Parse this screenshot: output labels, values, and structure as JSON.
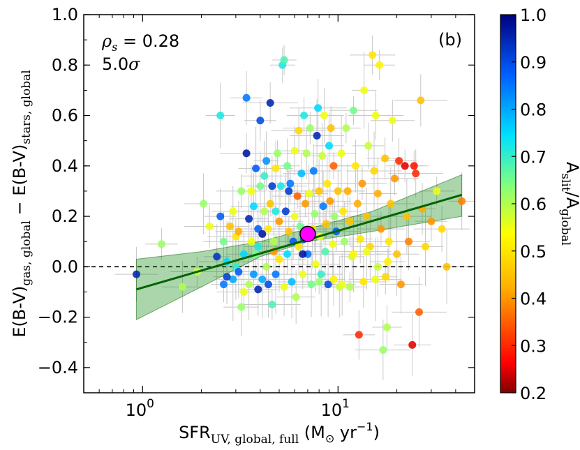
{
  "chart_data": {
    "type": "scatter",
    "panel_label": "(b)",
    "stat_rho": "ρ",
    "stat_rho_sub": "s",
    "stat_rho_value": " = 0.28",
    "stat_sigma_value": "5.0",
    "stat_sigma_symbol": "σ",
    "xscale": "log",
    "xlim": [
      0.5,
      50
    ],
    "ylim": [
      -0.5,
      1.0
    ],
    "x_ticks": [
      {
        "value": 1,
        "base": "10",
        "exp": "0"
      },
      {
        "value": 10,
        "base": "10",
        "exp": "1"
      }
    ],
    "y_ticks": [
      "−0.4",
      "−0.2",
      "0.0",
      "0.2",
      "0.4",
      "0.6",
      "0.8",
      "1.0"
    ],
    "y_tick_values": [
      -0.4,
      -0.2,
      0.0,
      0.2,
      0.4,
      0.6,
      0.8,
      1.0
    ],
    "xlabel": {
      "main": "SFR",
      "sub": "UV, global, full",
      "unit_open": " (M",
      "unit_sun": "⊙",
      "unit_yr": " yr",
      "unit_exp": "−1",
      "unit_close": ")"
    },
    "ylabel": {
      "a": "E(B-V)",
      "a_sub": "gas, global",
      "minus": " − ",
      "b": "E(B-V)",
      "b_sub": "stars, global"
    },
    "colorbar": {
      "label_a": "A",
      "label_a_sub": "slit",
      "slash": "/",
      "label_b": "A",
      "label_b_sub": "global",
      "range": [
        0.2,
        1.0
      ],
      "ticks": [
        "0.2",
        "0.3",
        "0.4",
        "0.5",
        "0.6",
        "0.7",
        "0.8",
        "0.9",
        "1.0"
      ],
      "tick_values": [
        0.2,
        0.3,
        0.4,
        0.5,
        0.6,
        0.7,
        0.8,
        0.9,
        1.0
      ]
    },
    "zero_line": 0.0,
    "fit_line": {
      "x": [
        0.93,
        43
      ],
      "y": [
        -0.09,
        0.285
      ]
    },
    "fit_band": {
      "x": [
        0.93,
        2,
        4,
        7,
        15,
        43
      ],
      "lower": [
        -0.21,
        -0.08,
        0.04,
        0.1,
        0.14,
        0.2
      ],
      "upper": [
        0.03,
        0.06,
        0.1,
        0.15,
        0.22,
        0.365
      ]
    },
    "highlight_point": {
      "x": 7.0,
      "y": 0.13,
      "color": "#ff00ff"
    },
    "points": [
      [
        0.93,
        -0.03,
        0.95
      ],
      [
        1.25,
        0.09,
        0.62
      ],
      [
        1.6,
        -0.08,
        0.6
      ],
      [
        1.9,
        -0.02,
        0.58
      ],
      [
        2.05,
        0.25,
        0.62
      ],
      [
        2.2,
        0.16,
        0.55
      ],
      [
        2.4,
        0.04,
        0.93
      ],
      [
        2.5,
        0.2,
        0.88
      ],
      [
        2.5,
        0.6,
        0.72
      ],
      [
        2.6,
        0.1,
        0.65
      ],
      [
        2.6,
        -0.07,
        0.85
      ],
      [
        2.7,
        0.02,
        0.75
      ],
      [
        2.8,
        0.16,
        0.45
      ],
      [
        2.9,
        -0.05,
        0.8
      ],
      [
        2.9,
        0.22,
        0.55
      ],
      [
        3.0,
        0.0,
        0.7
      ],
      [
        3.0,
        0.12,
        0.5
      ],
      [
        3.1,
        -0.02,
        0.88
      ],
      [
        3.2,
        -0.16,
        0.62
      ],
      [
        3.2,
        0.3,
        0.62
      ],
      [
        3.3,
        0.05,
        0.75
      ],
      [
        3.3,
        -0.1,
        0.55
      ],
      [
        3.4,
        0.45,
        0.97
      ],
      [
        3.4,
        0.67,
        0.85
      ],
      [
        3.5,
        0.19,
        0.95
      ],
      [
        3.5,
        -0.07,
        0.6
      ],
      [
        3.6,
        0.1,
        0.55
      ],
      [
        3.6,
        0.3,
        0.55
      ],
      [
        3.7,
        -0.03,
        0.82
      ],
      [
        3.7,
        0.24,
        0.75
      ],
      [
        3.8,
        0.39,
        0.88
      ],
      [
        3.8,
        0.05,
        0.65
      ],
      [
        3.9,
        0.15,
        0.88
      ],
      [
        3.9,
        -0.09,
        0.95
      ],
      [
        4.0,
        0.58,
        0.9
      ],
      [
        4.0,
        0.32,
        0.65
      ],
      [
        4.1,
        0.13,
        0.97
      ],
      [
        4.1,
        -0.05,
        0.8
      ],
      [
        4.2,
        0.22,
        0.6
      ],
      [
        4.2,
        0.36,
        0.7
      ],
      [
        4.3,
        0.42,
        0.82
      ],
      [
        4.3,
        0.0,
        0.6
      ],
      [
        4.4,
        0.15,
        0.5
      ],
      [
        4.4,
        -0.07,
        0.9
      ],
      [
        4.5,
        0.65,
        0.95
      ],
      [
        4.5,
        0.25,
        0.45
      ],
      [
        4.6,
        0.32,
        0.92
      ],
      [
        4.6,
        -0.15,
        0.68
      ],
      [
        4.7,
        0.1,
        0.6
      ],
      [
        4.7,
        0.06,
        0.4
      ],
      [
        4.8,
        0.22,
        0.72
      ],
      [
        4.8,
        -0.03,
        0.85
      ],
      [
        4.9,
        0.45,
        0.62
      ],
      [
        5.0,
        0.18,
        0.4
      ],
      [
        5.0,
        0.03,
        0.5
      ],
      [
        5.1,
        0.32,
        0.72
      ],
      [
        5.2,
        0.8,
        0.72
      ],
      [
        5.3,
        0.82,
        0.68
      ],
      [
        5.3,
        -0.08,
        0.55
      ],
      [
        5.4,
        0.22,
        0.92
      ],
      [
        5.5,
        0.4,
        0.65
      ],
      [
        5.5,
        0.05,
        0.75
      ],
      [
        5.6,
        0.14,
        0.45
      ],
      [
        5.7,
        0.33,
        0.85
      ],
      [
        5.8,
        -0.06,
        0.78
      ],
      [
        5.9,
        0.1,
        0.88
      ],
      [
        6.0,
        0.2,
        0.55
      ],
      [
        6.0,
        0.46,
        0.55
      ],
      [
        6.1,
        -0.12,
        0.6
      ],
      [
        6.2,
        0.28,
        0.35
      ],
      [
        6.3,
        0.08,
        0.5
      ],
      [
        6.3,
        0.54,
        0.48
      ],
      [
        6.4,
        0.16,
        0.65
      ],
      [
        6.5,
        0.37,
        0.78
      ],
      [
        6.6,
        -0.03,
        0.55
      ],
      [
        6.7,
        0.11,
        0.9
      ],
      [
        6.7,
        0.6,
        0.72
      ],
      [
        6.8,
        0.25,
        0.4
      ],
      [
        6.9,
        0.45,
        0.6
      ],
      [
        7.0,
        0.05,
        0.85
      ],
      [
        7.1,
        0.29,
        0.55
      ],
      [
        7.2,
        0.55,
        0.62
      ],
      [
        7.3,
        -0.07,
        0.65
      ],
      [
        7.4,
        0.15,
        0.5
      ],
      [
        7.5,
        0.38,
        0.85
      ],
      [
        7.6,
        0.21,
        0.62
      ],
      [
        7.7,
        0.01,
        0.55
      ],
      [
        7.8,
        0.52,
        0.95
      ],
      [
        7.9,
        0.63,
        0.75
      ],
      [
        8.0,
        0.3,
        0.45
      ],
      [
        8.1,
        0.12,
        0.55
      ],
      [
        8.2,
        -0.03,
        0.7
      ],
      [
        8.3,
        0.44,
        0.58
      ],
      [
        8.4,
        0.24,
        0.85
      ],
      [
        8.5,
        0.6,
        0.55
      ],
      [
        8.6,
        0.06,
        0.68
      ],
      [
        8.7,
        0.17,
        0.45
      ],
      [
        8.8,
        0.33,
        0.5
      ],
      [
        8.9,
        -0.07,
        0.9
      ],
      [
        9.0,
        0.48,
        0.75
      ],
      [
        9.1,
        0.26,
        0.4
      ],
      [
        9.2,
        0.55,
        0.45
      ],
      [
        9.4,
        0.09,
        0.55
      ],
      [
        9.5,
        0.4,
        0.35
      ],
      [
        9.6,
        0.2,
        0.62
      ],
      [
        9.8,
        0.14,
        0.88
      ],
      [
        10.0,
        0.3,
        0.45
      ],
      [
        10.2,
        -0.08,
        0.58
      ],
      [
        10.4,
        0.45,
        0.55
      ],
      [
        10.6,
        0.22,
        0.5
      ],
      [
        10.8,
        0.1,
        0.62
      ],
      [
        11.0,
        0.55,
        0.6
      ],
      [
        11.2,
        0.3,
        0.42
      ],
      [
        11.5,
        0.18,
        0.45
      ],
      [
        11.8,
        0.04,
        0.58
      ],
      [
        12.0,
        0.62,
        0.65
      ],
      [
        12.3,
        0.4,
        0.5
      ],
      [
        12.6,
        0.25,
        0.42
      ],
      [
        12.8,
        -0.27,
        0.3
      ],
      [
        13.0,
        0.11,
        0.5
      ],
      [
        13.3,
        0.33,
        0.4
      ],
      [
        13.6,
        0.7,
        0.55
      ],
      [
        14.0,
        0.2,
        0.45
      ],
      [
        14.3,
        0.48,
        0.58
      ],
      [
        14.6,
        0.08,
        0.48
      ],
      [
        15.0,
        0.84,
        0.5
      ],
      [
        15.3,
        0.38,
        0.48
      ],
      [
        15.6,
        0.6,
        0.55
      ],
      [
        16.0,
        0.29,
        0.42
      ],
      [
        16.3,
        0.8,
        0.52
      ],
      [
        16.6,
        0.15,
        0.4
      ],
      [
        17.0,
        -0.33,
        0.62
      ],
      [
        17.4,
        0.43,
        0.45
      ],
      [
        17.8,
        -0.24,
        0.6
      ],
      [
        18.2,
        0.1,
        0.5
      ],
      [
        18.6,
        0.25,
        0.45
      ],
      [
        19.0,
        0.58,
        0.55
      ],
      [
        19.5,
        0.35,
        0.4
      ],
      [
        20.0,
        0.05,
        0.45
      ],
      [
        20.5,
        0.42,
        0.3
      ],
      [
        21.0,
        -0.07,
        0.4
      ],
      [
        22.0,
        0.4,
        0.25
      ],
      [
        22.5,
        0.2,
        0.45
      ],
      [
        23.0,
        0.1,
        0.38
      ],
      [
        24.0,
        -0.31,
        0.25
      ],
      [
        24.5,
        0.4,
        0.28
      ],
      [
        25.0,
        0.37,
        0.3
      ],
      [
        26.0,
        -0.18,
        0.35
      ],
      [
        26.5,
        0.66,
        0.45
      ],
      [
        27.0,
        0.23,
        0.42
      ],
      [
        28.0,
        0.08,
        0.48
      ],
      [
        30.0,
        0.18,
        0.4
      ],
      [
        32.0,
        0.3,
        0.55
      ],
      [
        34.0,
        0.15,
        0.48
      ],
      [
        36.0,
        -0.0,
        0.45
      ],
      [
        43.0,
        0.26,
        0.38
      ],
      [
        3.9,
        0.08,
        0.72
      ],
      [
        4.8,
        0.39,
        0.5
      ],
      [
        5.6,
        0.3,
        0.92
      ],
      [
        6.6,
        0.05,
        0.97
      ],
      [
        3.1,
        0.14,
        0.42
      ],
      [
        2.7,
        -0.04,
        0.92
      ],
      [
        8.0,
        -0.06,
        0.62
      ],
      [
        9.5,
        -0.05,
        0.52
      ],
      [
        10.5,
        -0.07,
        0.55
      ],
      [
        11.5,
        -0.08,
        0.6
      ],
      [
        13.5,
        -0.06,
        0.5
      ],
      [
        15.5,
        -0.05,
        0.55
      ],
      [
        17.5,
        -0.04,
        0.48
      ],
      [
        12.0,
        0.05,
        0.52
      ],
      [
        14.0,
        0.06,
        0.55
      ],
      [
        16.0,
        0.0,
        0.58
      ],
      [
        18.0,
        0.02,
        0.52
      ]
    ]
  }
}
